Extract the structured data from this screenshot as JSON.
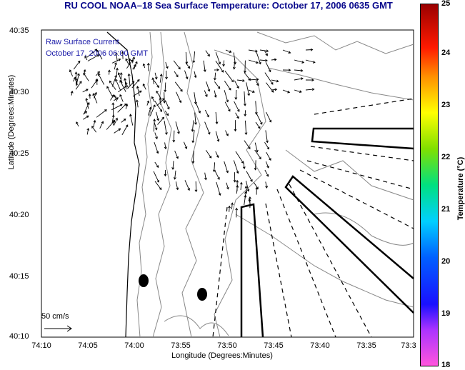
{
  "title": "RU COOL  NOAA–18  Sea Surface Temperature:  October 17, 2006 0635 GMT",
  "legend": {
    "line1": "Raw Surface Current",
    "line2": "October 17, 2006 06:00 GMT"
  },
  "scale_label": "50 cm/s",
  "colorbar": {
    "label": "Temperature (°C)",
    "ticks": [
      "25",
      "24",
      "23",
      "22",
      "21",
      "20",
      "19",
      "18"
    ]
  },
  "chart_data": {
    "type": "map",
    "xlabel": "Longitude (Degrees:Minutes)",
    "ylabel": "Latitude (Degrees:Minutes)",
    "x_ticks": [
      "74:10",
      "74:05",
      "74:00",
      "73:55",
      "73:50",
      "73:45",
      "73:40",
      "73:35",
      "73:3"
    ],
    "y_ticks": [
      "40:35",
      "40:30",
      "40:25",
      "40:20",
      "40:15",
      "40:10"
    ],
    "xlim": [
      "74:10",
      "73:30"
    ],
    "ylim": [
      "40:10",
      "40:35"
    ],
    "grid": false
  }
}
